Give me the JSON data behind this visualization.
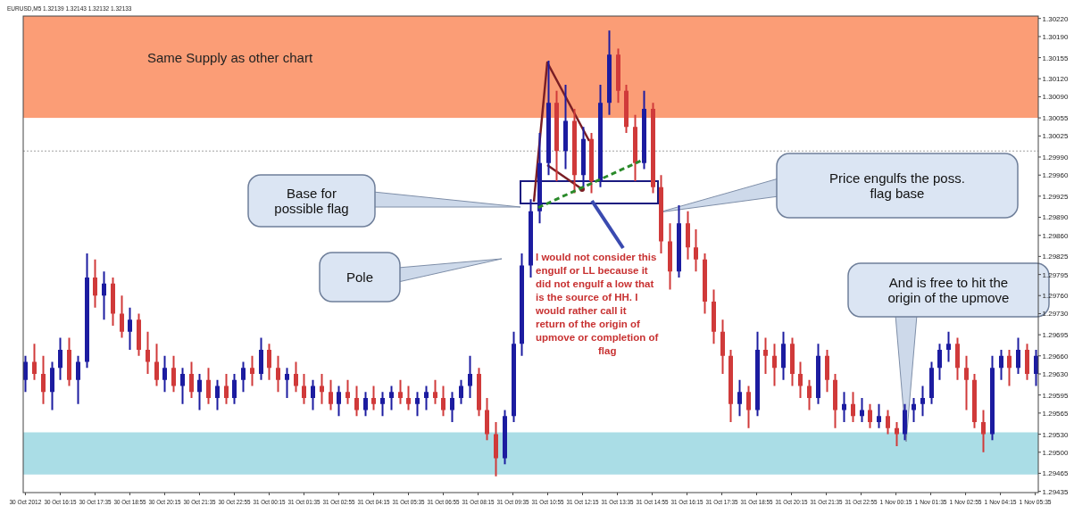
{
  "chart_data": {
    "type": "candlestick",
    "title": "EURUSD,M5  1.32139 1.32143 1.32132 1.32133",
    "x": [
      "2012-10-30T14:55",
      "2012-10-30T15:15",
      "2012-10-30T15:35",
      "2012-10-30T15:55",
      "2012-10-30T16:15",
      "2012-10-30T16:35",
      "2012-10-30T16:55",
      "2012-10-30T17:15",
      "2012-10-30T17:35",
      "2012-10-30T17:55",
      "2012-10-30T18:15",
      "2012-10-30T18:35",
      "2012-10-30T18:55",
      "2012-10-30T19:15",
      "2012-10-30T19:35",
      "2012-10-30T19:55",
      "2012-10-30T20:15",
      "2012-10-30T20:35",
      "2012-10-30T20:55",
      "2012-10-30T21:15",
      "2012-10-30T21:35",
      "2012-10-30T21:55",
      "2012-10-30T22:15",
      "2012-10-30T22:35",
      "2012-10-30T22:55",
      "2012-10-30T23:15",
      "2012-10-30T23:35",
      "2012-10-30T23:55",
      "2012-10-31T00:15",
      "2012-10-31T00:35",
      "2012-10-31T00:55",
      "2012-10-31T01:15",
      "2012-10-31T01:35",
      "2012-10-31T01:55",
      "2012-10-31T02:15",
      "2012-10-31T02:35",
      "2012-10-31T02:55",
      "2012-10-31T03:15",
      "2012-10-31T03:35",
      "2012-10-31T03:55",
      "2012-10-31T04:15",
      "2012-10-31T04:35",
      "2012-10-31T04:55",
      "2012-10-31T05:15",
      "2012-10-31T05:35",
      "2012-10-31T05:55",
      "2012-10-31T06:15",
      "2012-10-31T06:35",
      "2012-10-31T06:55",
      "2012-10-31T07:15",
      "2012-10-31T07:35",
      "2012-10-31T07:55",
      "2012-10-31T08:15",
      "2012-10-31T08:35",
      "2012-10-31T08:55",
      "2012-10-31T09:15",
      "2012-10-31T09:35",
      "2012-10-31T09:55",
      "2012-10-31T10:15",
      "2012-10-31T10:35",
      "2012-10-31T10:55",
      "2012-10-31T11:15",
      "2012-10-31T11:35",
      "2012-10-31T11:55",
      "2012-10-31T12:15",
      "2012-10-31T12:35",
      "2012-10-31T12:55",
      "2012-10-31T13:15",
      "2012-10-31T13:35",
      "2012-10-31T13:55",
      "2012-10-31T14:15",
      "2012-10-31T14:35",
      "2012-10-31T14:55",
      "2012-10-31T15:15",
      "2012-10-31T15:35",
      "2012-10-31T15:55",
      "2012-10-31T16:15",
      "2012-10-31T16:35",
      "2012-10-31T16:55",
      "2012-10-31T17:15",
      "2012-10-31T17:35",
      "2012-10-31T17:55",
      "2012-10-31T18:15",
      "2012-10-31T18:35",
      "2012-10-31T18:55",
      "2012-10-31T19:15",
      "2012-10-31T19:35",
      "2012-10-31T19:55",
      "2012-10-31T20:15",
      "2012-10-31T20:35",
      "2012-10-31T20:55",
      "2012-10-31T21:15",
      "2012-10-31T21:35",
      "2012-10-31T21:55",
      "2012-10-31T22:15",
      "2012-10-31T22:35",
      "2012-10-31T22:55",
      "2012-10-31T23:15",
      "2012-10-31T23:35",
      "2012-10-31T23:55",
      "2012-11-01T00:15",
      "2012-11-01T00:35",
      "2012-11-01T00:55",
      "2012-11-01T01:15",
      "2012-11-01T01:35",
      "2012-11-01T01:55",
      "2012-11-01T02:15",
      "2012-11-01T02:35",
      "2012-11-01T02:55",
      "2012-11-01T03:15",
      "2012-11-01T03:35",
      "2012-11-01T03:55",
      "2012-11-01T04:15",
      "2012-11-01T04:35",
      "2012-11-01T04:55",
      "2012-11-01T05:15",
      "2012-11-01T05:35"
    ],
    "ohlc": [
      [
        1.2962,
        1.2966,
        1.296,
        1.2965
      ],
      [
        1.2965,
        1.2968,
        1.2962,
        1.2963
      ],
      [
        1.2963,
        1.2966,
        1.2958,
        1.296
      ],
      [
        1.296,
        1.2965,
        1.2957,
        1.2964
      ],
      [
        1.2964,
        1.2969,
        1.2962,
        1.2967
      ],
      [
        1.2967,
        1.2969,
        1.2961,
        1.2962
      ],
      [
        1.2962,
        1.2966,
        1.2958,
        1.2965
      ],
      [
        1.2965,
        1.2983,
        1.2964,
        1.2979
      ],
      [
        1.2979,
        1.2982,
        1.2974,
        1.2976
      ],
      [
        1.2976,
        1.298,
        1.2972,
        1.2978
      ],
      [
        1.2978,
        1.2979,
        1.2971,
        1.2973
      ],
      [
        1.2973,
        1.2976,
        1.2969,
        1.297
      ],
      [
        1.297,
        1.2974,
        1.2967,
        1.2972
      ],
      [
        1.2972,
        1.2973,
        1.2966,
        1.2967
      ],
      [
        1.2967,
        1.297,
        1.2963,
        1.2965
      ],
      [
        1.2965,
        1.2968,
        1.2961,
        1.2962
      ],
      [
        1.2962,
        1.2966,
        1.296,
        1.2964
      ],
      [
        1.2964,
        1.2966,
        1.296,
        1.2961
      ],
      [
        1.2961,
        1.2964,
        1.2958,
        1.2963
      ],
      [
        1.2963,
        1.2965,
        1.2959,
        1.296
      ],
      [
        1.296,
        1.2963,
        1.2957,
        1.2962
      ],
      [
        1.2962,
        1.2964,
        1.2958,
        1.2959
      ],
      [
        1.2959,
        1.2962,
        1.2957,
        1.2961
      ],
      [
        1.2961,
        1.2963,
        1.2958,
        1.2959
      ],
      [
        1.2959,
        1.2963,
        1.2958,
        1.2962
      ],
      [
        1.2962,
        1.2965,
        1.296,
        1.2964
      ],
      [
        1.2964,
        1.2966,
        1.2961,
        1.2963
      ],
      [
        1.2963,
        1.2969,
        1.2962,
        1.2967
      ],
      [
        1.2967,
        1.2968,
        1.2962,
        1.2964
      ],
      [
        1.2964,
        1.2966,
        1.296,
        1.2962
      ],
      [
        1.2962,
        1.2964,
        1.2959,
        1.2963
      ],
      [
        1.2963,
        1.2965,
        1.296,
        1.2961
      ],
      [
        1.2961,
        1.2963,
        1.2958,
        1.2959
      ],
      [
        1.2959,
        1.2962,
        1.2957,
        1.2961
      ],
      [
        1.2961,
        1.2963,
        1.2958,
        1.296
      ],
      [
        1.296,
        1.2962,
        1.2957,
        1.2958
      ],
      [
        1.2958,
        1.2961,
        1.2956,
        1.296
      ],
      [
        1.296,
        1.2962,
        1.2958,
        1.2959
      ],
      [
        1.2959,
        1.2961,
        1.2956,
        1.2957
      ],
      [
        1.2957,
        1.296,
        1.2956,
        1.2959
      ],
      [
        1.2959,
        1.2961,
        1.2957,
        1.2958
      ],
      [
        1.2958,
        1.296,
        1.2956,
        1.2959
      ],
      [
        1.2959,
        1.2961,
        1.2957,
        1.296
      ],
      [
        1.296,
        1.2962,
        1.2958,
        1.2959
      ],
      [
        1.2959,
        1.2961,
        1.2957,
        1.2958
      ],
      [
        1.2958,
        1.296,
        1.2956,
        1.2959
      ],
      [
        1.2959,
        1.2961,
        1.2957,
        1.296
      ],
      [
        1.296,
        1.2962,
        1.2958,
        1.2959
      ],
      [
        1.2959,
        1.2961,
        1.2956,
        1.2957
      ],
      [
        1.2957,
        1.296,
        1.2955,
        1.2959
      ],
      [
        1.2959,
        1.2962,
        1.2958,
        1.2961
      ],
      [
        1.2961,
        1.2966,
        1.2959,
        1.2963
      ],
      [
        1.2963,
        1.2964,
        1.2956,
        1.2957
      ],
      [
        1.2957,
        1.2959,
        1.2952,
        1.2953
      ],
      [
        1.2953,
        1.2955,
        1.2946,
        1.2949
      ],
      [
        1.2949,
        1.2957,
        1.2948,
        1.2956
      ],
      [
        1.2956,
        1.297,
        1.2955,
        1.2968
      ],
      [
        1.2968,
        1.2983,
        1.2966,
        1.2981
      ],
      [
        1.2981,
        1.2992,
        1.2979,
        1.299
      ],
      [
        1.299,
        1.3003,
        1.2988,
        1.2998
      ],
      [
        1.2998,
        1.3015,
        1.2996,
        1.3008
      ],
      [
        1.3008,
        1.301,
        1.2995,
        1.3
      ],
      [
        1.3,
        1.3011,
        1.2997,
        1.3005
      ],
      [
        1.3005,
        1.3007,
        1.2993,
        1.2996
      ],
      [
        1.2996,
        1.3004,
        1.2994,
        1.3002
      ],
      [
        1.3002,
        1.3003,
        1.2993,
        1.2995
      ],
      [
        1.2995,
        1.3011,
        1.2994,
        1.3008
      ],
      [
        1.3008,
        1.302,
        1.3006,
        1.3016
      ],
      [
        1.3016,
        1.3017,
        1.3008,
        1.301
      ],
      [
        1.301,
        1.3011,
        1.3003,
        1.3004
      ],
      [
        1.3004,
        1.3006,
        1.2995,
        1.2998
      ],
      [
        1.2998,
        1.301,
        1.2997,
        1.3007
      ],
      [
        1.3007,
        1.3008,
        1.2993,
        1.2994
      ],
      [
        1.2994,
        1.2996,
        1.2983,
        1.2985
      ],
      [
        1.2985,
        1.2988,
        1.2977,
        1.298
      ],
      [
        1.298,
        1.2991,
        1.2979,
        1.2988
      ],
      [
        1.2988,
        1.299,
        1.2982,
        1.2984
      ],
      [
        1.2984,
        1.2987,
        1.298,
        1.2982
      ],
      [
        1.2982,
        1.2983,
        1.2973,
        1.2975
      ],
      [
        1.2975,
        1.2977,
        1.2968,
        1.297
      ],
      [
        1.297,
        1.2972,
        1.2963,
        1.2966
      ],
      [
        1.2966,
        1.2967,
        1.2955,
        1.2958
      ],
      [
        1.2958,
        1.2962,
        1.2956,
        1.296
      ],
      [
        1.296,
        1.2961,
        1.2954,
        1.2957
      ],
      [
        1.2957,
        1.297,
        1.2956,
        1.2967
      ],
      [
        1.2967,
        1.2969,
        1.2963,
        1.2966
      ],
      [
        1.2966,
        1.2968,
        1.2961,
        1.2964
      ],
      [
        1.2964,
        1.297,
        1.2962,
        1.2968
      ],
      [
        1.2968,
        1.2969,
        1.2961,
        1.2963
      ],
      [
        1.2963,
        1.2965,
        1.2959,
        1.2961
      ],
      [
        1.2961,
        1.2962,
        1.2957,
        1.2959
      ],
      [
        1.2959,
        1.2968,
        1.2958,
        1.2966
      ],
      [
        1.2966,
        1.2967,
        1.296,
        1.2962
      ],
      [
        1.2962,
        1.2963,
        1.2954,
        1.2957
      ],
      [
        1.2957,
        1.296,
        1.2955,
        1.2958
      ],
      [
        1.2958,
        1.296,
        1.2955,
        1.2956
      ],
      [
        1.2956,
        1.2959,
        1.2955,
        1.2957
      ],
      [
        1.2957,
        1.2958,
        1.2954,
        1.2955
      ],
      [
        1.2955,
        1.2958,
        1.2954,
        1.2956
      ],
      [
        1.2956,
        1.2957,
        1.2953,
        1.2954
      ],
      [
        1.2954,
        1.2955,
        1.2951,
        1.2953
      ],
      [
        1.2953,
        1.2958,
        1.2952,
        1.2957
      ],
      [
        1.2957,
        1.2959,
        1.2955,
        1.2958
      ],
      [
        1.2958,
        1.2961,
        1.2956,
        1.2959
      ],
      [
        1.2959,
        1.2965,
        1.2958,
        1.2964
      ],
      [
        1.2964,
        1.2968,
        1.2962,
        1.2967
      ],
      [
        1.2967,
        1.297,
        1.2965,
        1.2968
      ],
      [
        1.2968,
        1.2969,
        1.2962,
        1.2964
      ],
      [
        1.2964,
        1.2966,
        1.2957,
        1.2962
      ],
      [
        1.2962,
        1.2963,
        1.2954,
        1.2955
      ],
      [
        1.2955,
        1.2957,
        1.295,
        1.2953
      ],
      [
        1.2953,
        1.2966,
        1.2952,
        1.2964
      ],
      [
        1.2964,
        1.2967,
        1.2962,
        1.2966
      ],
      [
        1.2966,
        1.2967,
        1.2961,
        1.2964
      ],
      [
        1.2964,
        1.2969,
        1.2963,
        1.2967
      ],
      [
        1.2967,
        1.2968,
        1.2962,
        1.2963
      ],
      [
        1.2963,
        1.2967,
        1.2961,
        1.2966
      ]
    ],
    "colors": [
      "#1c1ca0",
      "#d03a3a",
      "#d03a3a",
      "#1c1ca0",
      "#1c1ca0",
      "#d03a3a",
      "#1c1ca0",
      "#1c1ca0",
      "#d03a3a",
      "#1c1ca0",
      "#d03a3a",
      "#d03a3a",
      "#1c1ca0",
      "#d03a3a",
      "#d03a3a",
      "#d03a3a",
      "#1c1ca0",
      "#d03a3a",
      "#1c1ca0",
      "#d03a3a",
      "#1c1ca0",
      "#d03a3a",
      "#1c1ca0",
      "#d03a3a",
      "#1c1ca0",
      "#1c1ca0",
      "#d03a3a",
      "#1c1ca0",
      "#d03a3a",
      "#d03a3a",
      "#1c1ca0",
      "#d03a3a",
      "#d03a3a",
      "#1c1ca0",
      "#d03a3a",
      "#d03a3a",
      "#1c1ca0",
      "#d03a3a",
      "#d03a3a",
      "#1c1ca0",
      "#d03a3a",
      "#1c1ca0",
      "#1c1ca0",
      "#d03a3a",
      "#d03a3a",
      "#1c1ca0",
      "#1c1ca0",
      "#d03a3a",
      "#d03a3a",
      "#1c1ca0",
      "#1c1ca0",
      "#1c1ca0",
      "#d03a3a",
      "#d03a3a",
      "#d03a3a",
      "#1c1ca0",
      "#1c1ca0",
      "#1c1ca0",
      "#1c1ca0",
      "#1c1ca0",
      "#1c1ca0",
      "#d03a3a",
      "#1c1ca0",
      "#d03a3a",
      "#1c1ca0",
      "#d03a3a",
      "#1c1ca0",
      "#1c1ca0",
      "#d03a3a",
      "#d03a3a",
      "#d03a3a",
      "#1c1ca0",
      "#d03a3a",
      "#d03a3a",
      "#d03a3a",
      "#1c1ca0",
      "#d03a3a",
      "#d03a3a",
      "#d03a3a",
      "#d03a3a",
      "#d03a3a",
      "#d03a3a",
      "#1c1ca0",
      "#d03a3a",
      "#1c1ca0",
      "#d03a3a",
      "#d03a3a",
      "#1c1ca0",
      "#d03a3a",
      "#d03a3a",
      "#d03a3a",
      "#1c1ca0",
      "#d03a3a",
      "#d03a3a",
      "#1c1ca0",
      "#d03a3a",
      "#1c1ca0",
      "#d03a3a",
      "#1c1ca0",
      "#d03a3a",
      "#d03a3a",
      "#1c1ca0",
      "#1c1ca0",
      "#1c1ca0",
      "#1c1ca0",
      "#1c1ca0",
      "#1c1ca0",
      "#d03a3a",
      "#d03a3a",
      "#d03a3a",
      "#d03a3a",
      "#1c1ca0",
      "#1c1ca0",
      "#d03a3a",
      "#1c1ca0",
      "#d03a3a",
      "#1c1ca0"
    ],
    "series": [
      {
        "type": "line",
        "color": "#2a8a2a",
        "line_style": "dashed",
        "x": [
          "2012-10-31T10:33",
          "2012-10-31T14:36"
        ],
        "values": [
          1.29906,
          1.29986
        ]
      }
    ],
    "xlim": [
      "2012-10-30T14:50",
      "2012-11-01T05:42"
    ],
    "xticks": [
      {
        "value": "2012-10-30T14:55",
        "label": "30 Oct 2012"
      },
      {
        "value": "2012-10-30T16:15",
        "label": "30 Oct 16:15"
      },
      {
        "value": "2012-10-30T17:35",
        "label": "30 Oct 17:35"
      },
      {
        "value": "2012-10-30T18:55",
        "label": "30 Oct 18:55"
      },
      {
        "value": "2012-10-30T20:15",
        "label": "30 Oct 20:15"
      },
      {
        "value": "2012-10-30T21:35",
        "label": "30 Oct 21:35"
      },
      {
        "value": "2012-10-30T22:55",
        "label": "30 Oct 22:55"
      },
      {
        "value": "2012-10-31T00:15",
        "label": "31 Oct 00:15"
      },
      {
        "value": "2012-10-31T01:35",
        "label": "31 Oct 01:35"
      },
      {
        "value": "2012-10-31T02:55",
        "label": "31 Oct 02:55"
      },
      {
        "value": "2012-10-31T04:15",
        "label": "31 Oct 04:15"
      },
      {
        "value": "2012-10-31T05:35",
        "label": "31 Oct 05:35"
      },
      {
        "value": "2012-10-31T06:55",
        "label": "31 Oct 06:55"
      },
      {
        "value": "2012-10-31T08:15",
        "label": "31 Oct 08:15"
      },
      {
        "value": "2012-10-31T09:35",
        "label": "31 Oct 09:35"
      },
      {
        "value": "2012-10-31T10:55",
        "label": "31 Oct 10:55"
      },
      {
        "value": "2012-10-31T12:15",
        "label": "31 Oct 12:15"
      },
      {
        "value": "2012-10-31T13:35",
        "label": "31 Oct 13:35"
      },
      {
        "value": "2012-10-31T14:55",
        "label": "31 Oct 14:55"
      },
      {
        "value": "2012-10-31T16:15",
        "label": "31 Oct 16:15"
      },
      {
        "value": "2012-10-31T17:35",
        "label": "31 Oct 17:35"
      },
      {
        "value": "2012-10-31T18:55",
        "label": "31 Oct 18:55"
      },
      {
        "value": "2012-10-31T20:15",
        "label": "31 Oct 20:15"
      },
      {
        "value": "2012-10-31T21:35",
        "label": "31 Oct 21:35"
      },
      {
        "value": "2012-10-31T22:55",
        "label": "31 Oct 22:55"
      },
      {
        "value": "2012-11-01T00:15",
        "label": "1 Nov 00:15"
      },
      {
        "value": "2012-11-01T01:35",
        "label": "1 Nov 01:35"
      },
      {
        "value": "2012-11-01T02:55",
        "label": "1 Nov 02:55"
      },
      {
        "value": "2012-11-01T04:15",
        "label": "1 Nov 04:15"
      },
      {
        "value": "2012-11-01T05:35",
        "label": "1 Nov 05:35"
      }
    ],
    "ylim": [
      1.29433,
      1.30224
    ],
    "yticks": [
      {
        "value": 1.3022,
        "label": "1.30220"
      },
      {
        "value": 1.3019,
        "label": "1.30190"
      },
      {
        "value": 1.30155,
        "label": "1.30155"
      },
      {
        "value": 1.3012,
        "label": "1.30120"
      },
      {
        "value": 1.3009,
        "label": "1.30090"
      },
      {
        "value": 1.30055,
        "label": "1.30055"
      },
      {
        "value": 1.30025,
        "label": "1.30025"
      },
      {
        "value": 1.2999,
        "label": "1.29990"
      },
      {
        "value": 1.2996,
        "label": "1.29960"
      },
      {
        "value": 1.29925,
        "label": "1.29925"
      },
      {
        "value": 1.2989,
        "label": "1.29890"
      },
      {
        "value": 1.2986,
        "label": "1.29860"
      },
      {
        "value": 1.29825,
        "label": "1.29825"
      },
      {
        "value": 1.29795,
        "label": "1.29795"
      },
      {
        "value": 1.2976,
        "label": "1.29760"
      },
      {
        "value": 1.2973,
        "label": "1.29730"
      },
      {
        "value": 1.29695,
        "label": "1.29695"
      },
      {
        "value": 1.2966,
        "label": "1.29660"
      },
      {
        "value": 1.2963,
        "label": "1.29630"
      },
      {
        "value": 1.29595,
        "label": "1.29595"
      },
      {
        "value": 1.29565,
        "label": "1.29565"
      },
      {
        "value": 1.2953,
        "label": "1.29530"
      },
      {
        "value": 1.295,
        "label": "1.29500"
      },
      {
        "value": 1.29465,
        "label": "1.29465"
      },
      {
        "value": 1.29435,
        "label": "1.29435"
      }
    ],
    "bands": [
      {
        "axis": "y",
        "from": 1.30055,
        "to": 1.30224,
        "label": "Same Supply as other chart",
        "color": "#fb9d76"
      },
      {
        "axis": "y",
        "from": 1.29463,
        "to": 1.29533,
        "color": "#aadde6"
      }
    ],
    "ref_lines": [
      {
        "axis": "y",
        "value": 1.3,
        "color": "#a0a0a0",
        "line_style": "dotted"
      }
    ],
    "annotations": [
      "Base for possible flag",
      "Pole",
      "Price engulfs the poss. flag base",
      "And is free to hit the origin of the upmove",
      "I would not consider this engulf or LL because it did not engulf a low that is the source of HH. I would rather call it return of the origin of upmove or completion of flag"
    ]
  }
}
